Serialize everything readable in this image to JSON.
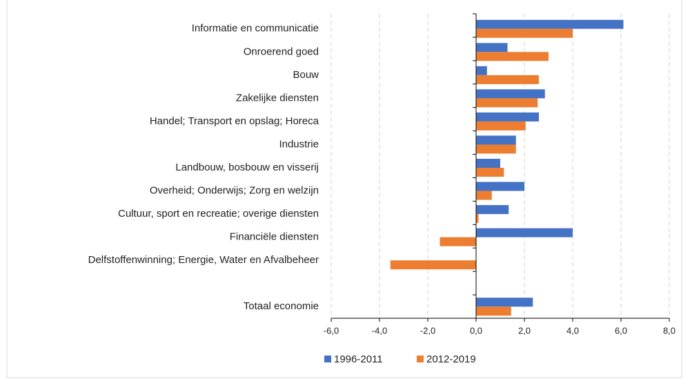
{
  "chart_data": {
    "type": "hbar",
    "categories": [
      "Informatie en communicatie",
      "Onroerend goed",
      "Bouw",
      "Zakelijke diensten",
      "Handel; Transport en opslag; Horeca",
      "Industrie",
      "Landbouw, bosbouw en visserij",
      "Overheid; Onderwijs; Zorg en welzijn",
      "Cultuur, sport en recreatie; overige diensten",
      "Financiële diensten",
      "Delfstoffenwinning; Energie, Water en Afvalbeheer",
      null,
      "Totaal economie"
    ],
    "series": [
      {
        "name": "1996-2011",
        "color": "#4472c4",
        "values": [
          6.1,
          1.3,
          0.45,
          2.85,
          2.6,
          1.65,
          1.0,
          2.0,
          1.35,
          4.0,
          null,
          null,
          2.35
        ]
      },
      {
        "name": "2012-2019",
        "color": "#ed7d31",
        "values": [
          4.0,
          3.0,
          2.6,
          2.55,
          2.05,
          1.65,
          1.15,
          0.65,
          0.1,
          -1.5,
          -3.55,
          null,
          1.45
        ]
      }
    ],
    "xlim": [
      -6,
      8
    ],
    "xticks": [
      {
        "value": -6,
        "label": "-6,0"
      },
      {
        "value": -4,
        "label": "-4,0"
      },
      {
        "value": -2,
        "label": "-2,0"
      },
      {
        "value": 0,
        "label": "0,0"
      },
      {
        "value": 2,
        "label": "2,0"
      },
      {
        "value": 4,
        "label": "4,0"
      },
      {
        "value": 6,
        "label": "6,0"
      },
      {
        "value": 8,
        "label": "8,0"
      }
    ],
    "grid": true,
    "legend": "bottom"
  }
}
